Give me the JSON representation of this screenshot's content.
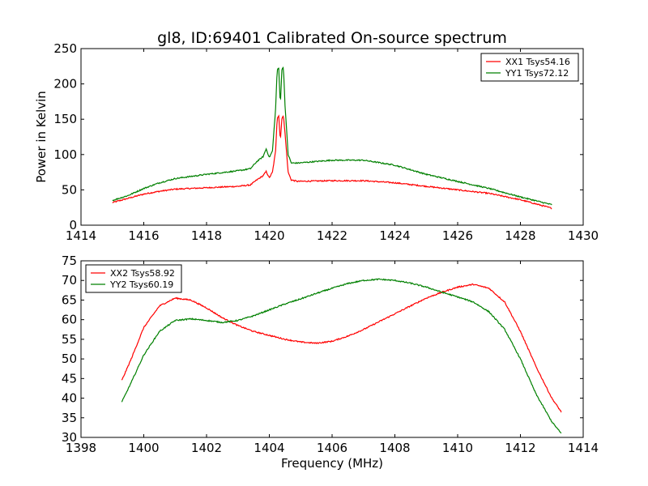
{
  "chart_data": [
    {
      "type": "line",
      "title": "gl8, ID:69401 Calibrated On-source spectrum",
      "xlabel": "",
      "ylabel": "Power in Kelvin",
      "xlim": [
        1414,
        1430
      ],
      "ylim": [
        0,
        250
      ],
      "xticks": [
        1414,
        1416,
        1418,
        1420,
        1422,
        1424,
        1426,
        1428,
        1430
      ],
      "yticks": [
        0,
        50,
        100,
        150,
        200,
        250
      ],
      "legend_position": "top-right",
      "series": [
        {
          "name": "XX1 Tsys54.16",
          "color": "#ff0000",
          "x": [
            1415.0,
            1415.5,
            1416.0,
            1416.5,
            1417.0,
            1418.0,
            1419.0,
            1419.4,
            1419.6,
            1419.8,
            1419.9,
            1420.0,
            1420.1,
            1420.2,
            1420.25,
            1420.3,
            1420.35,
            1420.4,
            1420.45,
            1420.5,
            1420.6,
            1420.7,
            1420.9,
            1422.0,
            1423.0,
            1424.0,
            1425.0,
            1426.0,
            1427.0,
            1428.0,
            1429.0
          ],
          "values": [
            32,
            38,
            44,
            48,
            51,
            53,
            55,
            57,
            64,
            70,
            76,
            67,
            75,
            105,
            152,
            155,
            120,
            150,
            156,
            130,
            75,
            64,
            62,
            63,
            63,
            60,
            55,
            50,
            45,
            36,
            24
          ]
        },
        {
          "name": "YY1 Tsys72.12",
          "color": "#008000",
          "x": [
            1415.0,
            1415.5,
            1416.0,
            1416.5,
            1417.0,
            1418.0,
            1419.0,
            1419.4,
            1419.6,
            1419.8,
            1419.9,
            1420.0,
            1420.1,
            1420.2,
            1420.25,
            1420.3,
            1420.35,
            1420.4,
            1420.45,
            1420.5,
            1420.6,
            1420.7,
            1420.9,
            1422.0,
            1423.0,
            1424.0,
            1425.0,
            1426.0,
            1427.0,
            1428.0,
            1429.0
          ],
          "values": [
            35,
            42,
            52,
            60,
            66,
            72,
            77,
            80,
            90,
            97,
            108,
            96,
            105,
            165,
            220,
            222,
            170,
            220,
            224,
            170,
            100,
            88,
            88,
            92,
            92,
            85,
            72,
            62,
            52,
            40,
            29
          ]
        }
      ]
    },
    {
      "type": "line",
      "title": "",
      "xlabel": "Frequency (MHz)",
      "ylabel": "",
      "xlim": [
        1398,
        1414
      ],
      "ylim": [
        30,
        75
      ],
      "xticks": [
        1398,
        1400,
        1402,
        1404,
        1406,
        1408,
        1410,
        1412,
        1414
      ],
      "yticks": [
        30,
        35,
        40,
        45,
        50,
        55,
        60,
        65,
        70,
        75
      ],
      "legend_position": "top-left",
      "series": [
        {
          "name": "XX2 Tsys58.92",
          "color": "#ff0000",
          "x": [
            1399.3,
            1399.6,
            1400.0,
            1400.5,
            1401.0,
            1401.5,
            1402.0,
            1402.5,
            1403.0,
            1403.5,
            1404.0,
            1404.5,
            1405.0,
            1405.5,
            1406.0,
            1406.5,
            1407.0,
            1407.5,
            1408.0,
            1408.5,
            1409.0,
            1409.5,
            1410.0,
            1410.5,
            1411.0,
            1411.5,
            1412.0,
            1412.5,
            1413.0,
            1413.3
          ],
          "values": [
            44.5,
            50,
            58,
            63.5,
            65.5,
            65,
            63,
            60.5,
            58.5,
            57,
            56,
            55,
            54.3,
            54,
            54.5,
            55.8,
            57.5,
            59.5,
            61.5,
            63.5,
            65.5,
            67,
            68.3,
            69,
            68,
            64.5,
            57,
            48,
            40,
            36.5
          ]
        },
        {
          "name": "YY2 Tsys60.19",
          "color": "#008000",
          "x": [
            1399.3,
            1399.6,
            1400.0,
            1400.5,
            1401.0,
            1401.5,
            1402.0,
            1402.5,
            1403.0,
            1403.5,
            1404.0,
            1404.5,
            1405.0,
            1405.5,
            1406.0,
            1406.5,
            1407.0,
            1407.5,
            1408.0,
            1408.5,
            1409.0,
            1409.5,
            1410.0,
            1410.5,
            1411.0,
            1411.5,
            1412.0,
            1412.5,
            1413.0,
            1413.3
          ],
          "values": [
            39,
            44,
            51,
            57,
            59.8,
            60.2,
            59.8,
            59.3,
            59.8,
            61,
            62.5,
            64,
            65.3,
            66.7,
            68,
            69.2,
            70,
            70.3,
            70,
            69.3,
            68.3,
            67,
            65.8,
            64.5,
            62,
            57.5,
            50,
            41,
            34,
            31
          ]
        }
      ]
    }
  ]
}
